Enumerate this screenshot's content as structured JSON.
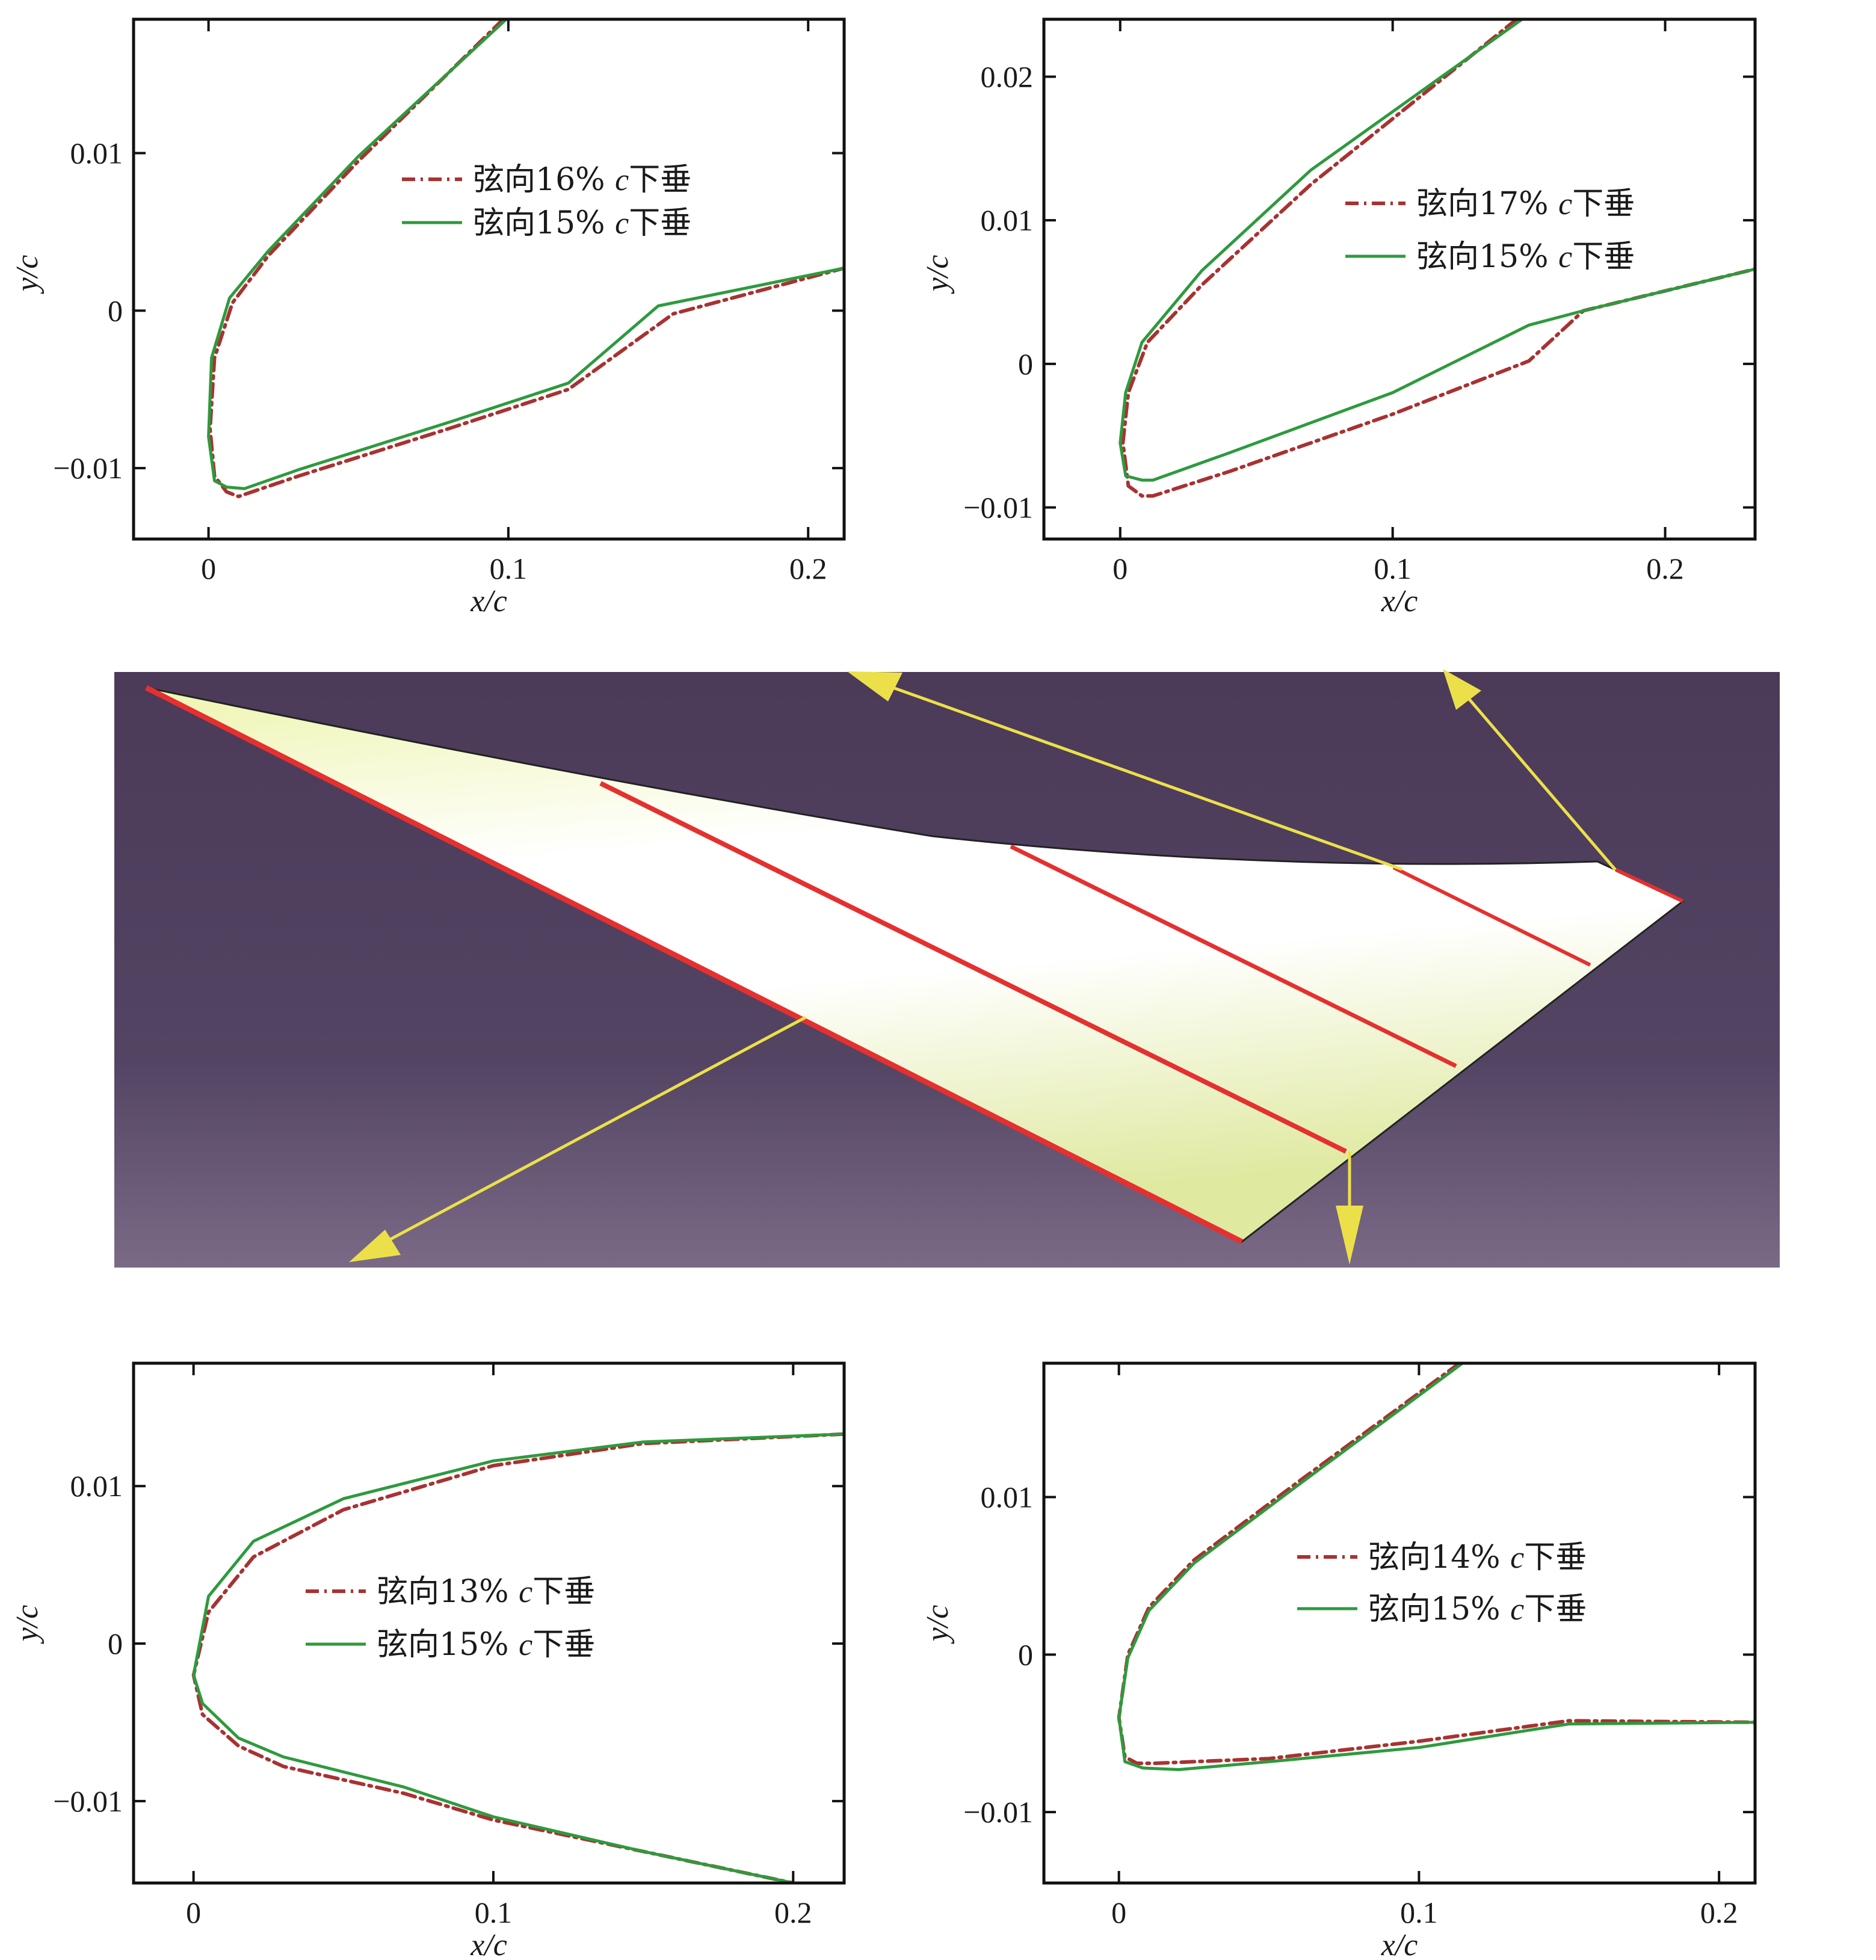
{
  "colors": {
    "dashdot": "#a83232",
    "solid": "#2e9a3e",
    "section_line": "#e53030",
    "arrow": "#ece04a",
    "panel_top": "#4b3a58",
    "panel_bottom": "#7a6a86",
    "wing_fill": "#eef5b0"
  },
  "chart_data": [
    {
      "type": "line",
      "position": "top-left",
      "xlabel": "x/c",
      "ylabel": "y/c",
      "xlim": [
        -0.025,
        0.212
      ],
      "ylim": [
        -0.0145,
        0.0185
      ],
      "xticks": [
        0,
        0.1,
        0.2
      ],
      "xtick_labels": [
        "0",
        "0.1",
        "0.2"
      ],
      "yticks": [
        -0.01,
        0,
        0.01
      ],
      "ytick_labels": [
        "−0.01",
        "0",
        "0.01"
      ],
      "legend_position": "center-right",
      "series": [
        {
          "name": "弦向16% c下垂",
          "style": "dashdot",
          "points": [
            [
              0.0983,
              0.0185
            ],
            [
              0.05,
              0.0095
            ],
            [
              0.02,
              0.0035
            ],
            [
              0.008,
              0.0005
            ],
            [
              0.002,
              -0.003
            ],
            [
              0.0005,
              -0.0075
            ],
            [
              0.002,
              -0.0105
            ],
            [
              0.006,
              -0.0115
            ],
            [
              0.01,
              -0.0118
            ],
            [
              0.03,
              -0.0105
            ],
            [
              0.08,
              -0.0075
            ],
            [
              0.12,
              -0.005
            ],
            [
              0.155,
              -0.0002
            ],
            [
              0.212,
              0.0027
            ]
          ]
        },
        {
          "name": "弦向15% c下垂",
          "style": "solid",
          "points": [
            [
              0.0993,
              0.0185
            ],
            [
              0.05,
              0.0098
            ],
            [
              0.02,
              0.0038
            ],
            [
              0.007,
              0.0008
            ],
            [
              0.001,
              -0.003
            ],
            [
              0.0,
              -0.008
            ],
            [
              0.002,
              -0.0108
            ],
            [
              0.006,
              -0.0112
            ],
            [
              0.012,
              -0.0113
            ],
            [
              0.03,
              -0.0101
            ],
            [
              0.08,
              -0.0071
            ],
            [
              0.12,
              -0.0046
            ],
            [
              0.15,
              0.0003
            ],
            [
              0.212,
              0.0027
            ]
          ]
        }
      ]
    },
    {
      "type": "line",
      "position": "top-right",
      "xlabel": "x/c",
      "ylabel": "y/c",
      "xlim": [
        -0.028,
        0.233
      ],
      "ylim": [
        -0.0122,
        0.024
      ],
      "xticks": [
        0,
        0.1,
        0.2
      ],
      "xtick_labels": [
        "0",
        "0.1",
        "0.2"
      ],
      "yticks": [
        -0.01,
        0,
        0.01,
        0.02
      ],
      "ytick_labels": [
        "−0.01",
        "0",
        "0.01",
        "0.02"
      ],
      "legend_position": "center-right",
      "series": [
        {
          "name": "弦向17% c下垂",
          "style": "dashdot",
          "points": [
            [
              0.1455,
              0.024
            ],
            [
              0.07,
              0.0125
            ],
            [
              0.03,
              0.0055
            ],
            [
              0.01,
              0.0015
            ],
            [
              0.003,
              -0.002
            ],
            [
              0.001,
              -0.0055
            ],
            [
              0.003,
              -0.0085
            ],
            [
              0.008,
              -0.0092
            ],
            [
              0.012,
              -0.0092
            ],
            [
              0.04,
              -0.0075
            ],
            [
              0.1,
              -0.0035
            ],
            [
              0.15,
              0.0002
            ],
            [
              0.17,
              0.0037
            ],
            [
              0.233,
              0.0066
            ]
          ]
        },
        {
          "name": "弦向15% c下垂",
          "style": "solid",
          "points": [
            [
              0.1475,
              0.024
            ],
            [
              0.07,
              0.0135
            ],
            [
              0.03,
              0.0065
            ],
            [
              0.008,
              0.0015
            ],
            [
              0.002,
              -0.002
            ],
            [
              0.0,
              -0.0055
            ],
            [
              0.002,
              -0.0078
            ],
            [
              0.008,
              -0.0081
            ],
            [
              0.012,
              -0.0081
            ],
            [
              0.04,
              -0.0062
            ],
            [
              0.1,
              -0.002
            ],
            [
              0.15,
              0.0027
            ],
            [
              0.17,
              0.0037
            ],
            [
              0.233,
              0.0066
            ]
          ]
        }
      ]
    },
    {
      "type": "line",
      "position": "bottom-left",
      "xlabel": "x/c",
      "ylabel": "y/c",
      "xlim": [
        -0.02,
        0.217
      ],
      "ylim": [
        -0.0152,
        0.0178
      ],
      "xticks": [
        0,
        0.1,
        0.2
      ],
      "xtick_labels": [
        "0",
        "0.1",
        "0.2"
      ],
      "yticks": [
        -0.01,
        0,
        0.01
      ],
      "ytick_labels": [
        "−0.01",
        "0",
        "0.01"
      ],
      "legend_position": "center-right",
      "series": [
        {
          "name": "弦向13% c下垂",
          "style": "dashdot",
          "points": [
            [
              0.217,
              0.0133
            ],
            [
              0.15,
              0.0127
            ],
            [
              0.1,
              0.0113
            ],
            [
              0.05,
              0.0085
            ],
            [
              0.02,
              0.0055
            ],
            [
              0.005,
              0.002
            ],
            [
              0.0,
              -0.002
            ],
            [
              0.003,
              -0.0045
            ],
            [
              0.015,
              -0.0065
            ],
            [
              0.03,
              -0.0078
            ],
            [
              0.07,
              -0.0095
            ],
            [
              0.1,
              -0.0112
            ],
            [
              0.15,
              -0.0132
            ],
            [
              0.2,
              -0.0152
            ]
          ]
        },
        {
          "name": "弦向15% c下垂",
          "style": "solid",
          "points": [
            [
              0.217,
              0.0133
            ],
            [
              0.15,
              0.0128
            ],
            [
              0.1,
              0.0116
            ],
            [
              0.05,
              0.0092
            ],
            [
              0.02,
              0.0065
            ],
            [
              0.005,
              0.003
            ],
            [
              0.0,
              -0.002
            ],
            [
              0.003,
              -0.0038
            ],
            [
              0.015,
              -0.006
            ],
            [
              0.03,
              -0.0072
            ],
            [
              0.07,
              -0.0091
            ],
            [
              0.1,
              -0.011
            ],
            [
              0.15,
              -0.0132
            ],
            [
              0.2,
              -0.0152
            ]
          ]
        }
      ]
    },
    {
      "type": "line",
      "position": "bottom-right",
      "xlabel": "x/c",
      "ylabel": "y/c",
      "xlim": [
        -0.025,
        0.212
      ],
      "ylim": [
        -0.0145,
        0.0185
      ],
      "xticks": [
        0,
        0.1,
        0.2
      ],
      "xtick_labels": [
        "0",
        "0.1",
        "0.2"
      ],
      "yticks": [
        -0.01,
        0,
        0.01
      ],
      "ytick_labels": [
        "−0.01",
        "0",
        "0.01"
      ],
      "legend_position": "center-right",
      "series": [
        {
          "name": "弦向14% c下垂",
          "style": "dashdot",
          "points": [
            [
              0.1135,
              0.0185
            ],
            [
              0.06,
              0.011
            ],
            [
              0.025,
              0.006
            ],
            [
              0.01,
              0.003
            ],
            [
              0.003,
              0.0
            ],
            [
              0.0,
              -0.004
            ],
            [
              0.002,
              -0.0065
            ],
            [
              0.006,
              -0.0069
            ],
            [
              0.012,
              -0.0069
            ],
            [
              0.05,
              -0.0066
            ],
            [
              0.1,
              -0.0055
            ],
            [
              0.15,
              -0.0042
            ],
            [
              0.212,
              -0.0043
            ]
          ]
        },
        {
          "name": "弦向15% c下垂",
          "style": "solid",
          "points": [
            [
              0.1145,
              0.0185
            ],
            [
              0.06,
              0.0108
            ],
            [
              0.025,
              0.0058
            ],
            [
              0.01,
              0.0028
            ],
            [
              0.003,
              -0.0002
            ],
            [
              0.0,
              -0.004
            ],
            [
              0.002,
              -0.0068
            ],
            [
              0.008,
              -0.0072
            ],
            [
              0.02,
              -0.0073
            ],
            [
              0.05,
              -0.0068
            ],
            [
              0.1,
              -0.0059
            ],
            [
              0.15,
              -0.0044
            ],
            [
              0.212,
              -0.0043
            ]
          ]
        }
      ]
    }
  ]
}
